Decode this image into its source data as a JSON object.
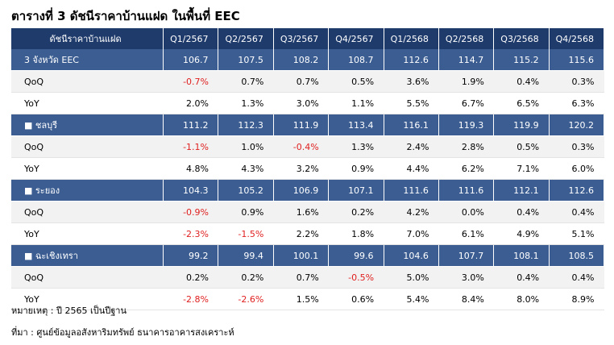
{
  "title": "ตารางที่ 3 ดัชนีราคาบ้านแฝด ในพื้นที่ EEC",
  "table": {
    "header": [
      "ดัชนีราคาบ้านแฝด",
      "Q1/2567",
      "Q2/2567",
      "Q3/2567",
      "Q4/2567",
      "Q1/2568",
      "Q2/2568",
      "Q3/2568",
      "Q4/2568"
    ],
    "groups": [
      {
        "label": "3 จังหวัด EEC",
        "values": [
          "106.7",
          "107.5",
          "108.2",
          "108.7",
          "112.6",
          "114.7",
          "115.2",
          "115.6"
        ],
        "rows": [
          {
            "label": "QoQ",
            "values": [
              "-0.7%",
              "0.7%",
              "0.7%",
              "0.5%",
              "3.6%",
              "1.9%",
              "0.4%",
              "0.3%"
            ]
          },
          {
            "label": "YoY",
            "values": [
              "2.0%",
              "1.3%",
              "3.0%",
              "1.1%",
              "5.5%",
              "6.7%",
              "6.5%",
              "6.3%"
            ]
          }
        ]
      },
      {
        "label": "■ ชลบุรี",
        "values": [
          "111.2",
          "112.3",
          "111.9",
          "113.4",
          "116.1",
          "119.3",
          "119.9",
          "120.2"
        ],
        "rows": [
          {
            "label": "QoQ",
            "values": [
              "-1.1%",
              "1.0%",
              "-0.4%",
              "1.3%",
              "2.4%",
              "2.8%",
              "0.5%",
              "0.3%"
            ]
          },
          {
            "label": "YoY",
            "values": [
              "4.8%",
              "4.3%",
              "3.2%",
              "0.9%",
              "4.4%",
              "6.2%",
              "7.1%",
              "6.0%"
            ]
          }
        ]
      },
      {
        "label": "■ ระยอง",
        "values": [
          "104.3",
          "105.2",
          "106.9",
          "107.1",
          "111.6",
          "111.6",
          "112.1",
          "112.6"
        ],
        "rows": [
          {
            "label": "QoQ",
            "values": [
              "-0.9%",
              "0.9%",
              "1.6%",
              "0.2%",
              "4.2%",
              "0.0%",
              "0.4%",
              "0.4%"
            ]
          },
          {
            "label": "YoY",
            "values": [
              "-2.3%",
              "-1.5%",
              "2.2%",
              "1.8%",
              "7.0%",
              "6.1%",
              "4.9%",
              "5.1%"
            ]
          }
        ]
      },
      {
        "label": "■ ฉะเชิงเทรา",
        "values": [
          "99.2",
          "99.4",
          "100.1",
          "99.6",
          "104.6",
          "107.7",
          "108.1",
          "108.5"
        ],
        "rows": [
          {
            "label": "QoQ",
            "values": [
              "0.2%",
              "0.2%",
              "0.7%",
              "-0.5%",
              "5.0%",
              "3.0%",
              "0.4%",
              "0.4%"
            ]
          },
          {
            "label": "YoY",
            "values": [
              "-2.8%",
              "-2.6%",
              "1.5%",
              "0.6%",
              "5.4%",
              "8.4%",
              "8.0%",
              "8.9%"
            ]
          }
        ]
      }
    ]
  },
  "notes": [
    "หมายเหตุ : ปี 2565 เป็นปีฐาน",
    "ที่มา : ศูนย์ข้อมูลอสังหาริมทรัพย์ ธนาคารอาคารสงเคราะห์"
  ]
}
